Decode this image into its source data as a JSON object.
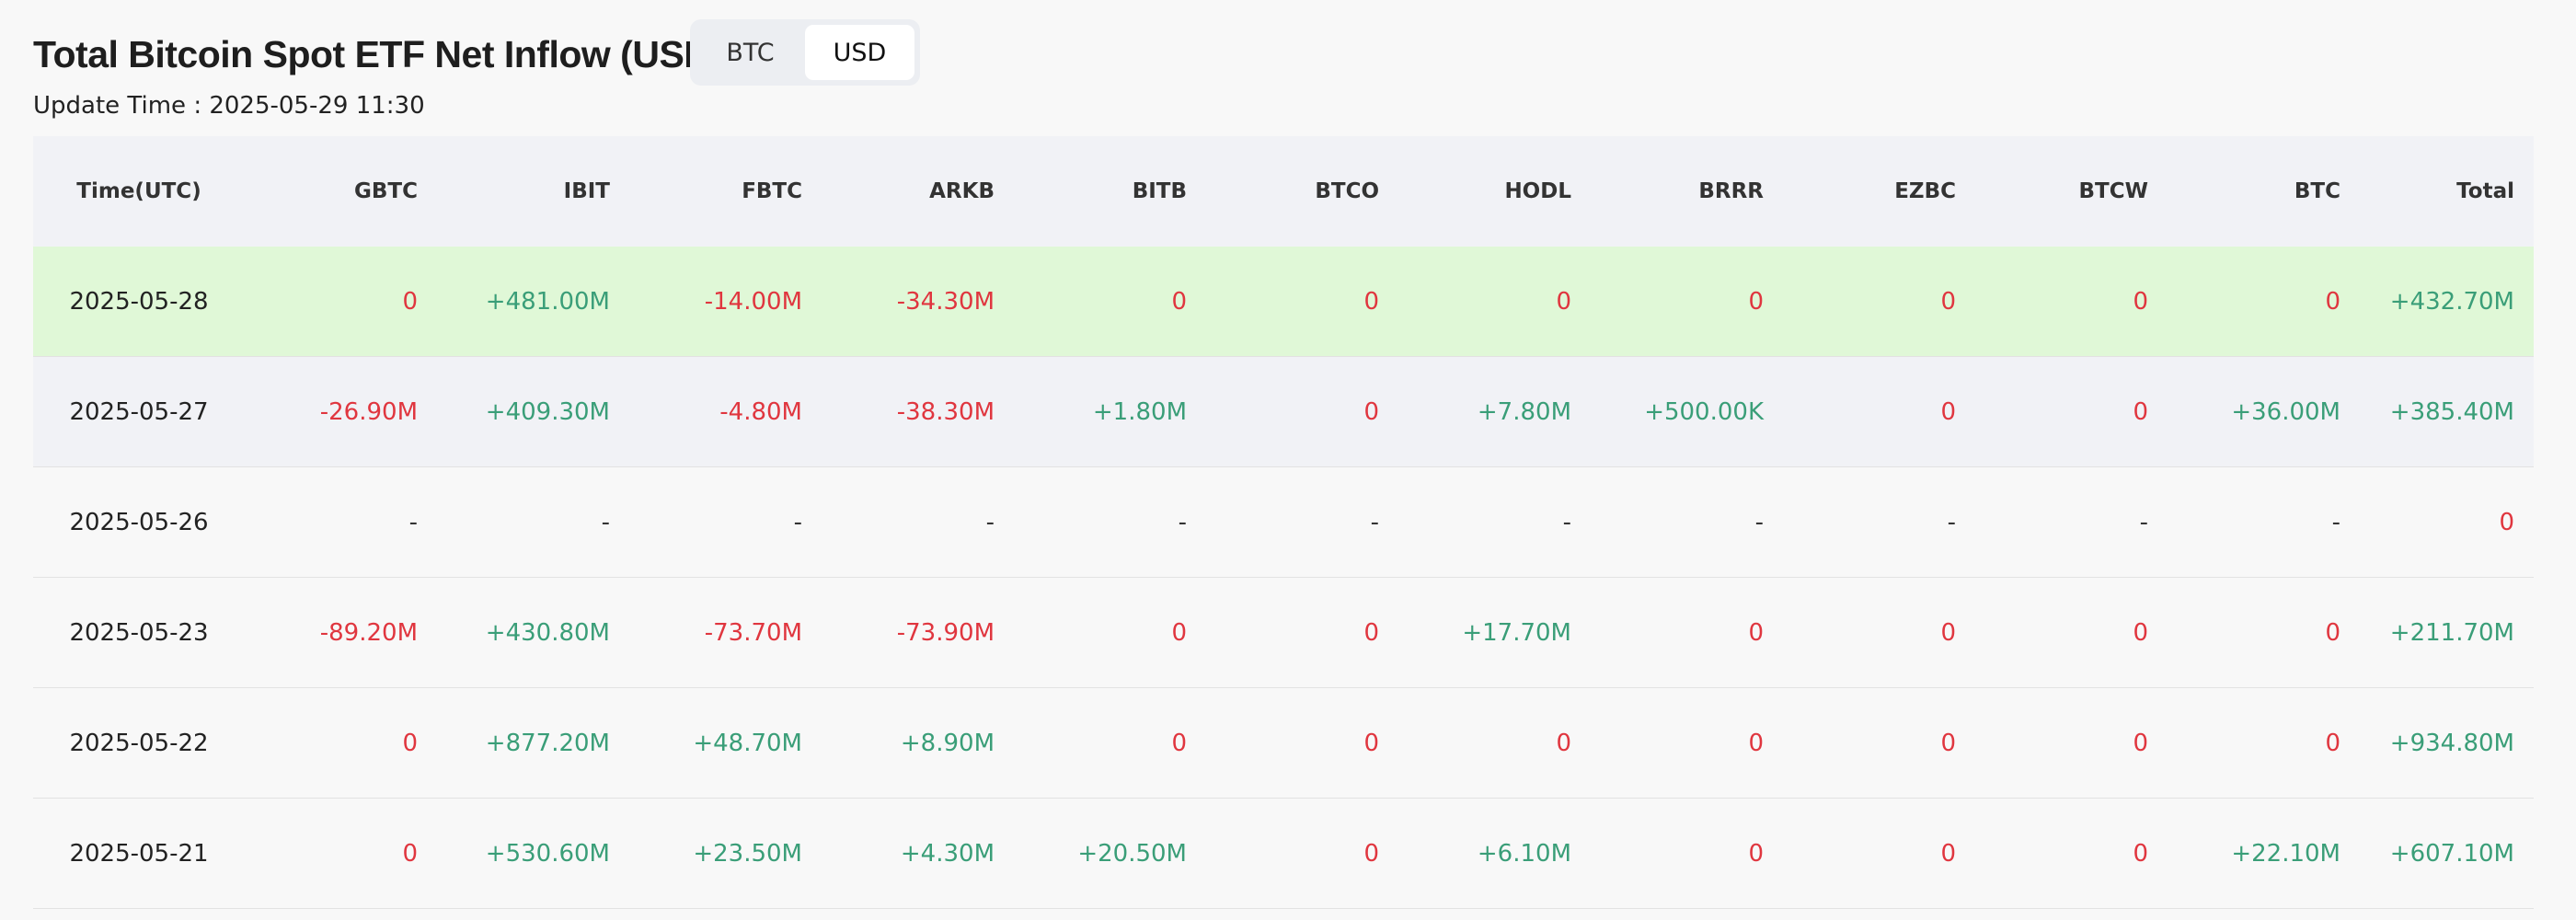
{
  "header": {
    "title": "Total Bitcoin Spot ETF Net Inflow (USD)",
    "update_time": "Update Time : 2025-05-29 11:30",
    "toggle": [
      "BTC",
      "USD"
    ]
  },
  "table": {
    "columns": [
      "Time(UTC)",
      "GBTC",
      "IBIT",
      "FBTC",
      "ARKB",
      "BITB",
      "BTCO",
      "HODL",
      "BRRR",
      "EZBC",
      "BTCW",
      "BTC",
      "Total"
    ],
    "rows": [
      [
        "2025-05-28",
        "0",
        "+481.00M",
        "-14.00M",
        "-34.30M",
        "0",
        "0",
        "0",
        "0",
        "0",
        "0",
        "0",
        "+432.70M"
      ],
      [
        "2025-05-27",
        "-26.90M",
        "+409.30M",
        "-4.80M",
        "-38.30M",
        "+1.80M",
        "0",
        "+7.80M",
        "+500.00K",
        "0",
        "0",
        "+36.00M",
        "+385.40M"
      ],
      [
        "2025-05-26",
        "-",
        "-",
        "-",
        "-",
        "-",
        "-",
        "-",
        "-",
        "-",
        "-",
        "-",
        "0"
      ],
      [
        "2025-05-23",
        "-89.20M",
        "+430.80M",
        "-73.70M",
        "-73.90M",
        "0",
        "0",
        "+17.70M",
        "0",
        "0",
        "0",
        "0",
        "+211.70M"
      ],
      [
        "2025-05-22",
        "0",
        "+877.20M",
        "+48.70M",
        "+8.90M",
        "0",
        "0",
        "0",
        "0",
        "0",
        "0",
        "0",
        "+934.80M"
      ],
      [
        "2025-05-21",
        "0",
        "+530.60M",
        "+23.50M",
        "+4.30M",
        "+20.50M",
        "0",
        "+6.10M",
        "0",
        "0",
        "0",
        "+22.10M",
        "+607.10M"
      ]
    ]
  }
}
